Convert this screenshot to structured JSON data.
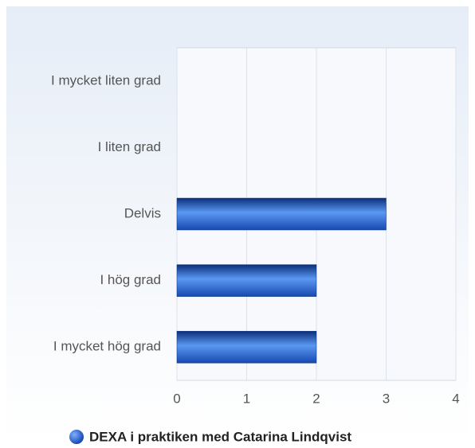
{
  "chart_data": {
    "type": "bar",
    "orientation": "horizontal",
    "categories": [
      "I mycket liten grad",
      "I liten grad",
      "Delvis",
      "I hög grad",
      "I mycket hög grad"
    ],
    "series": [
      {
        "name": "DEXA i praktiken med Catarina Lindqvist",
        "color": "#1f5fd0",
        "values": [
          0,
          0,
          3,
          2,
          2
        ]
      }
    ],
    "xlim": [
      0,
      4
    ],
    "xticks": [
      0,
      1,
      2,
      3,
      4
    ],
    "grid": true,
    "legend": "bottom"
  }
}
